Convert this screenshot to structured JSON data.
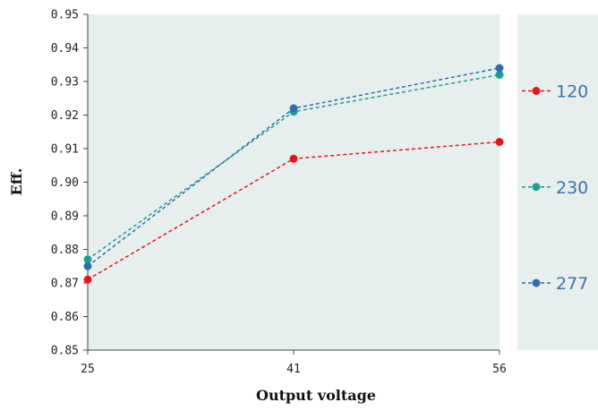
{
  "chart_data": {
    "type": "line",
    "title": "",
    "xlabel": "Output voltage",
    "ylabel": "Eff.",
    "x": [
      25,
      41,
      56
    ],
    "x_tick_labels": [
      "25",
      "41",
      "56"
    ],
    "ylim": [
      0.85,
      0.95
    ],
    "y_ticks": [
      0.85,
      0.86,
      0.87,
      0.88,
      0.89,
      0.9,
      0.91,
      0.92,
      0.93,
      0.94,
      0.95
    ],
    "y_tick_labels": [
      "0.85",
      "0.86",
      "0.87",
      "0.88",
      "0.89",
      "0.90",
      "0.91",
      "0.92",
      "0.93",
      "0.94",
      "0.95"
    ],
    "grid": false,
    "legend_position": "right",
    "series": [
      {
        "name": "120",
        "color": "#e8141b",
        "values": [
          0.871,
          0.907,
          0.912
        ]
      },
      {
        "name": "230",
        "color": "#1f9e8f",
        "values": [
          0.877,
          0.921,
          0.932
        ]
      },
      {
        "name": "277",
        "color": "#2e6db4",
        "values": [
          0.875,
          0.922,
          0.934
        ]
      }
    ],
    "plot_background": "#e6efed",
    "legend_text_color": "#3a74ad"
  }
}
